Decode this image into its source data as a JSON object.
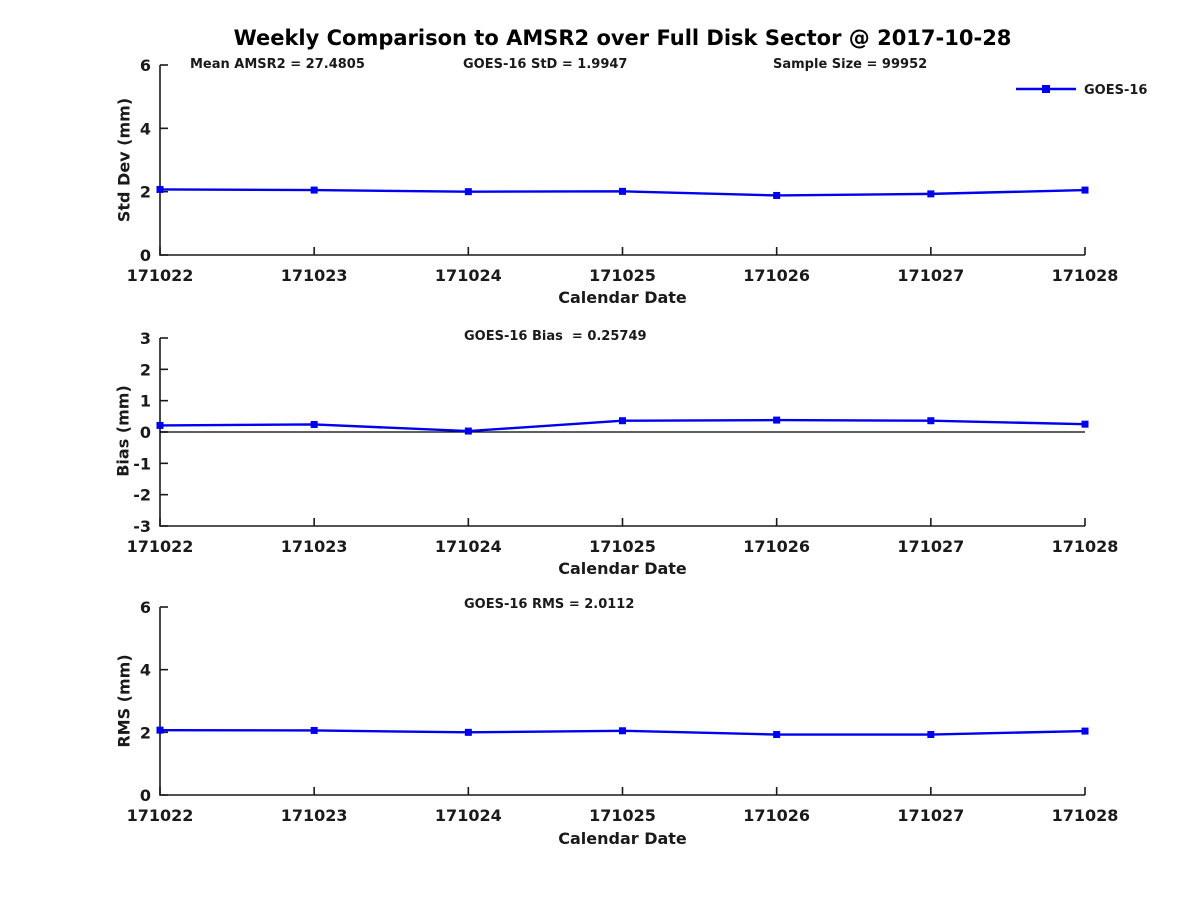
{
  "title": "Weekly Comparison to AMSR2 over Full Disk Sector @ 2017-10-28",
  "legend": {
    "label": "GOES-16"
  },
  "style": {
    "background": "#ffffff",
    "series_color": "#0000ee",
    "axis_color": "#1a1a1a",
    "zero_line_color": "#000000"
  },
  "chart_data": [
    {
      "id": "std",
      "type": "line",
      "annotations": [
        "Mean AMSR2 = 27.4805",
        "GOES-16 StD = 1.9947",
        "Sample Size = 99952"
      ],
      "categories": [
        "171022",
        "171023",
        "171024",
        "171025",
        "171026",
        "171027",
        "171028"
      ],
      "series": [
        {
          "name": "GOES-16",
          "values": [
            2.07,
            2.05,
            2.0,
            2.01,
            1.88,
            1.93,
            2.05
          ]
        }
      ],
      "xlabel": "Calendar Date",
      "ylabel": "Std Dev (mm)",
      "ylim": [
        0,
        6
      ],
      "yticks": [
        0,
        2,
        4,
        6
      ],
      "grid": false,
      "zero_line": false,
      "legend_position": "top-right"
    },
    {
      "id": "bias",
      "type": "line",
      "title": "GOES-16 Bias  = 0.25749",
      "categories": [
        "171022",
        "171023",
        "171024",
        "171025",
        "171026",
        "171027",
        "171028"
      ],
      "series": [
        {
          "name": "GOES-16",
          "values": [
            0.21,
            0.24,
            0.03,
            0.36,
            0.38,
            0.36,
            0.25
          ]
        }
      ],
      "xlabel": "Calendar Date",
      "ylabel": "Bias (mm)",
      "ylim": [
        -3,
        3
      ],
      "yticks": [
        -3,
        -2,
        -1,
        0,
        1,
        2,
        3
      ],
      "grid": false,
      "zero_line": true,
      "legend_position": "none"
    },
    {
      "id": "rms",
      "type": "line",
      "title": "GOES-16 RMS = 2.0112",
      "categories": [
        "171022",
        "171023",
        "171024",
        "171025",
        "171026",
        "171027",
        "171028"
      ],
      "series": [
        {
          "name": "GOES-16",
          "values": [
            2.07,
            2.06,
            2.0,
            2.05,
            1.93,
            1.93,
            2.04
          ]
        }
      ],
      "xlabel": "Calendar Date",
      "ylabel": "RMS (mm)",
      "ylim": [
        0,
        6
      ],
      "yticks": [
        0,
        2,
        4,
        6
      ],
      "grid": false,
      "zero_line": false,
      "legend_position": "none"
    }
  ]
}
